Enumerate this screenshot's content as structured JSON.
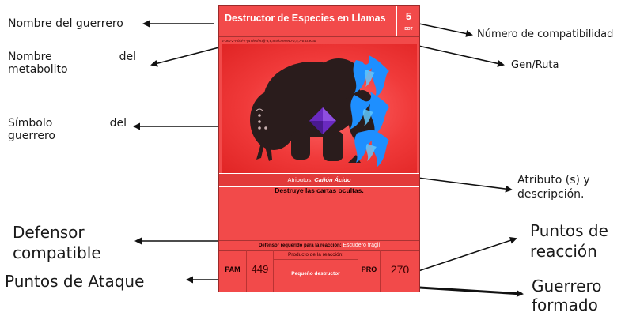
{
  "labels": {
    "warrior_name": "Nombre del guerrero",
    "metabolite_name": [
      "Nombre",
      "del",
      "metabolito"
    ],
    "warrior_symbol": [
      "Símbolo",
      "del",
      "guerrero"
    ],
    "compat_defender": [
      "Defensor",
      "compatible"
    ],
    "attack_points": "Puntos de Ataque",
    "compat_number": "Número de compatibilidad",
    "gene_route": "Gen/Ruta",
    "attributes_desc": [
      "Atributo (s) y",
      "descripción."
    ],
    "reaction_points": [
      "Puntos de",
      "reacción"
    ],
    "formed_warrior": [
      "Guerrero",
      "formado"
    ]
  },
  "card": {
    "title": "Destructor de Especies en Llamas",
    "compat_number": "5",
    "compat_code": "DDT",
    "route": "6-oxo-2-Hbhi-7-(4'clesfenil)-3,6,8-tricneneto-2,4,7-tricnexto",
    "attributes_label": "Atributos:",
    "attributes_value": "Cañón Ácido",
    "description": "Destruye las cartas ocultas.",
    "defender_label": "Defensor requerido para la reacción:",
    "defender_value": "Escudero frágil",
    "pam_label": "PAM",
    "pam_value": "449",
    "product_label": "Producto de la reacción:",
    "product_value": "Pequeño destructor",
    "pro_label": "PRO",
    "pro_value": "270"
  },
  "colors": {
    "card_red": "#f24a4a",
    "flame_blue": "#1e8fff",
    "gem_purple": "#6a2ac0"
  }
}
